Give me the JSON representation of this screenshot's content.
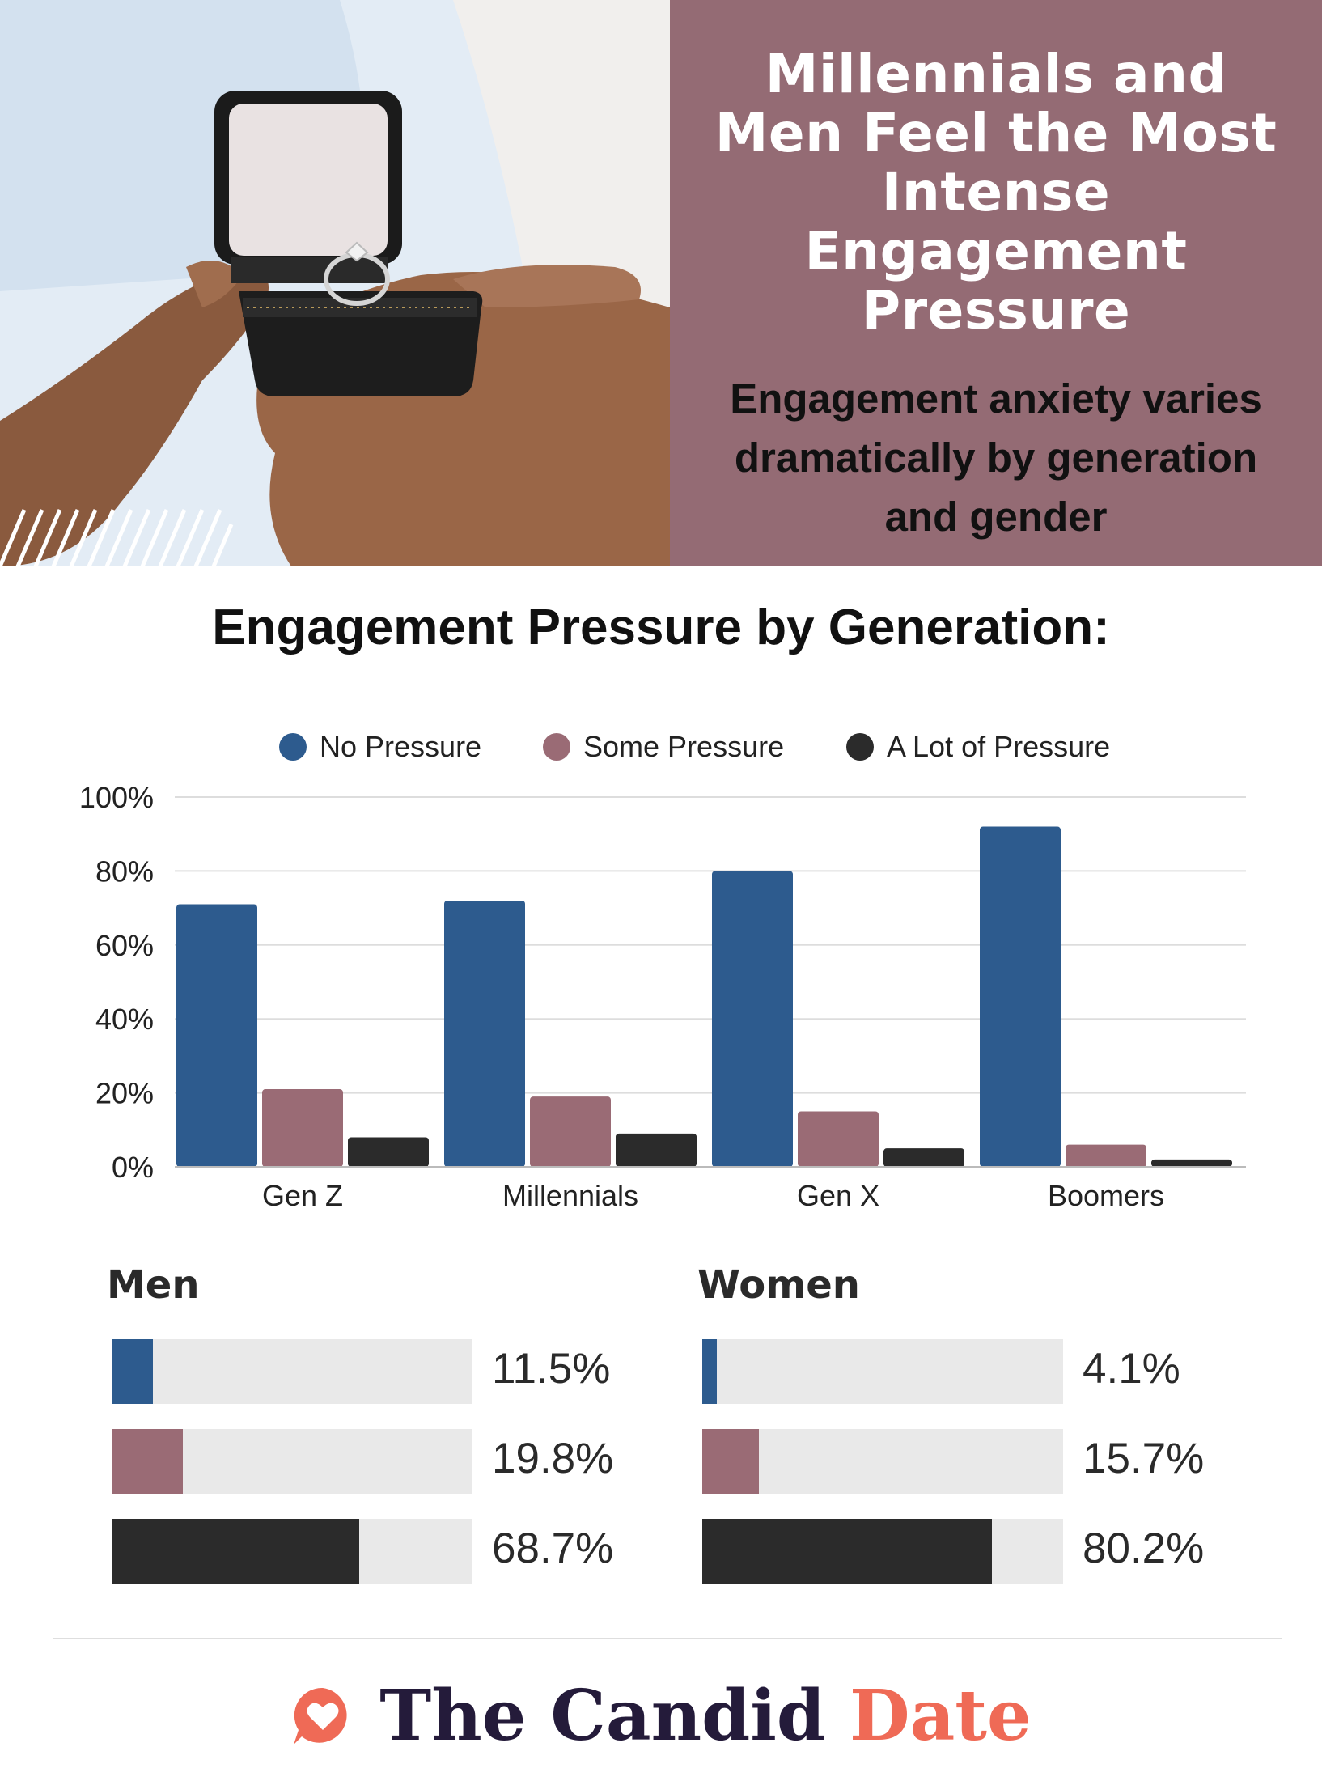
{
  "header": {
    "title": "Millennials and Men Feel the Most Intense Engagement Pressure",
    "subtitle": "Engagement anxiety varies dramatically by generation and gender"
  },
  "colors": {
    "panel": "#946b74",
    "no_pressure": "#2d5b8e",
    "some_pressure": "#9a6b75",
    "a_lot_of_pressure": "#2b2b2b",
    "track": "#e9e9e9",
    "brand_dark": "#241b3a",
    "brand_accent": "#ef6a56"
  },
  "photo": {
    "icons": [
      "ring-box-icon",
      "engagement-ring-icon",
      "hands-icon",
      "stripes-icon"
    ]
  },
  "chart_data": [
    {
      "type": "bar",
      "title": "Engagement Pressure by Generation:",
      "xlabel": "",
      "ylabel": "",
      "categories": [
        "Gen Z",
        "Millennials",
        "Gen X",
        "Boomers"
      ],
      "series": [
        {
          "name": "No Pressure",
          "values": [
            71,
            72,
            80,
            92
          ]
        },
        {
          "name": "Some Pressure",
          "values": [
            21,
            19,
            15,
            6
          ]
        },
        {
          "name": "A Lot of Pressure",
          "values": [
            8,
            9,
            5,
            2
          ]
        }
      ],
      "ylim": [
        0,
        100
      ],
      "yticks": [
        "0%",
        "20%",
        "40%",
        "60%",
        "80%",
        "100%"
      ],
      "grid": true,
      "legend": "top"
    },
    {
      "type": "bar",
      "title": "Men",
      "categories": [
        "No Pressure",
        "Some Pressure",
        "A Lot of Pressure"
      ],
      "values": [
        11.5,
        19.8,
        68.7
      ],
      "labels": [
        "11.5%",
        "19.8%",
        "68.7%"
      ],
      "ylim": [
        0,
        100
      ]
    },
    {
      "type": "bar",
      "title": "Women",
      "categories": [
        "No Pressure",
        "Some Pressure",
        "A Lot of Pressure"
      ],
      "values": [
        4.1,
        15.7,
        80.2
      ],
      "labels": [
        "4.1%",
        "15.7%",
        "80.2%"
      ],
      "ylim": [
        0,
        100
      ]
    }
  ],
  "footer": {
    "brand_part1": "The Candid",
    "brand_part2": "Date",
    "logo_icon": "heart-chat-bubble-icon"
  }
}
